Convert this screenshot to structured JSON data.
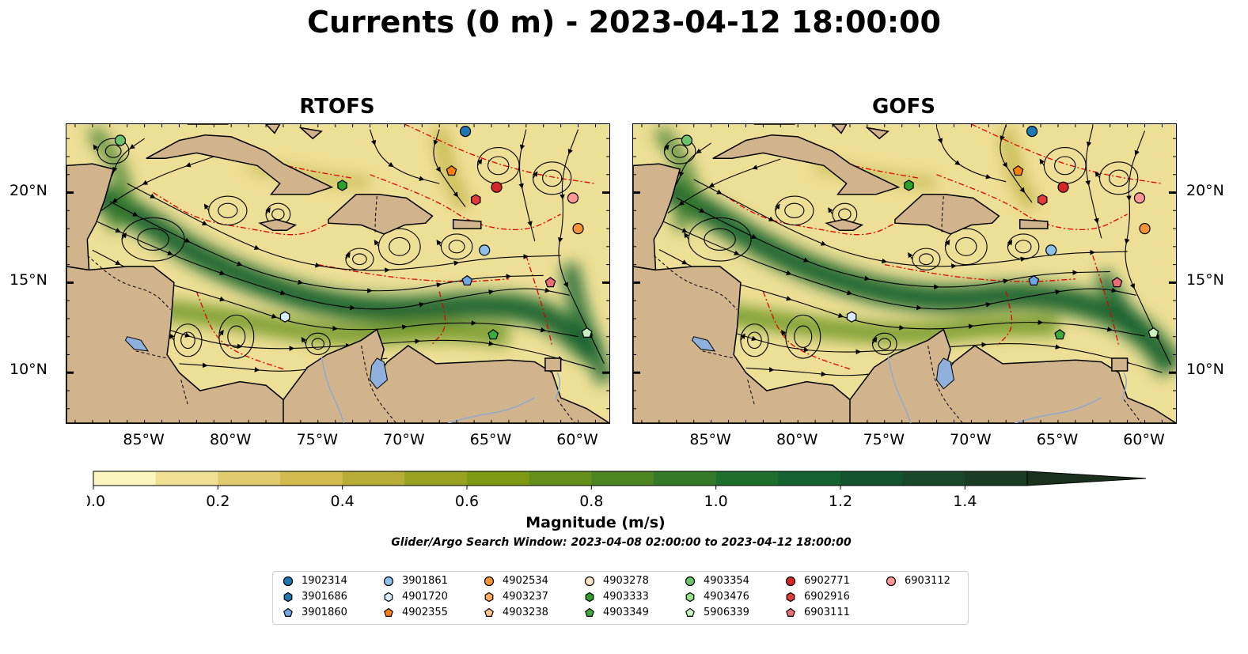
{
  "title": "Currents (0 m) - 2023-04-12 18:00:00",
  "panels": [
    {
      "title": "RTOFS"
    },
    {
      "title": "GOFS"
    }
  ],
  "lon_ticks": [
    "85°W",
    "80°W",
    "75°W",
    "70°W",
    "65°W",
    "60°W"
  ],
  "lat_ticks": [
    "20°N",
    "15°N",
    "10°N"
  ],
  "map_extent": {
    "lon": [
      -89.5,
      -58.2
    ],
    "lat": [
      7.2,
      23.8
    ]
  },
  "colorbar": {
    "label": "Magnitude (m/s)",
    "ticks": [
      "0.0",
      "0.2",
      "0.4",
      "0.6",
      "0.8",
      "1.0",
      "1.2",
      "1.4"
    ],
    "range": [
      0,
      1.5
    ],
    "extend": "max",
    "colors": [
      "#fbf5c0",
      "#efe093",
      "#e0cb6f",
      "#d2bb4f",
      "#b6ac36",
      "#97a320",
      "#7e9a14",
      "#63901b",
      "#4c8521",
      "#347a28",
      "#1e6f2d",
      "#136230",
      "#13532d",
      "#18472a",
      "#1a3c25",
      "#1c301e"
    ]
  },
  "search_window": "Glider/Argo Search Window: 2023-04-08 02:00:00 to 2023-04-12 18:00:00",
  "legend": [
    {
      "id": "1902314",
      "color": "#1f77b4",
      "marker": "circle"
    },
    {
      "id": "3901686",
      "color": "#1f77b4",
      "marker": "hexagon"
    },
    {
      "id": "3901860",
      "color": "#6ea6e6",
      "marker": "pentagon"
    },
    {
      "id": "3901861",
      "color": "#8ec1ea",
      "marker": "circle"
    },
    {
      "id": "4901720",
      "color": "#d6ecfa",
      "marker": "hexagon"
    },
    {
      "id": "4902355",
      "color": "#ff7f0e",
      "marker": "pentagon"
    },
    {
      "id": "4902534",
      "color": "#f8953a",
      "marker": "circle"
    },
    {
      "id": "4903237",
      "color": "#ffac63",
      "marker": "hexagon"
    },
    {
      "id": "4903238",
      "color": "#ffc690",
      "marker": "pentagon"
    },
    {
      "id": "4903278",
      "color": "#fde1c4",
      "marker": "circle"
    },
    {
      "id": "4903333",
      "color": "#2ca02c",
      "marker": "hexagon"
    },
    {
      "id": "4903349",
      "color": "#3cab3c",
      "marker": "pentagon"
    },
    {
      "id": "4903354",
      "color": "#6cc36c",
      "marker": "circle"
    },
    {
      "id": "4903476",
      "color": "#98df8a",
      "marker": "hexagon"
    },
    {
      "id": "5906339",
      "color": "#caf1c2",
      "marker": "pentagon"
    },
    {
      "id": "6902771",
      "color": "#d62728",
      "marker": "circle"
    },
    {
      "id": "6902916",
      "color": "#e03b3b",
      "marker": "hexagon"
    },
    {
      "id": "6903111",
      "color": "#ec6d7a",
      "marker": "pentagon"
    },
    {
      "id": "6903112",
      "color": "#ff9896",
      "marker": "circle"
    }
  ],
  "markers": [
    {
      "id": "1902314",
      "lon": -66.5,
      "lat": 23.4
    },
    {
      "id": "4903354",
      "lon": -86.4,
      "lat": 22.9
    },
    {
      "id": "4902355",
      "lon": -67.3,
      "lat": 21.2
    },
    {
      "id": "4903333",
      "lon": -73.6,
      "lat": 20.4
    },
    {
      "id": "6902771",
      "lon": -64.7,
      "lat": 20.3
    },
    {
      "id": "6902916",
      "lon": -65.9,
      "lat": 19.6
    },
    {
      "id": "6903112",
      "lon": -60.3,
      "lat": 19.7
    },
    {
      "id": "4902534",
      "lon": -60.0,
      "lat": 18.0
    },
    {
      "id": "3901861",
      "lon": -65.4,
      "lat": 16.8
    },
    {
      "id": "3901860",
      "lon": -66.4,
      "lat": 15.1
    },
    {
      "id": "6903111",
      "lon": -61.6,
      "lat": 15.0
    },
    {
      "id": "4901720",
      "lon": -76.9,
      "lat": 13.1
    },
    {
      "id": "4903349",
      "lon": -64.9,
      "lat": 12.1
    },
    {
      "id": "5906339",
      "lon": -59.5,
      "lat": 12.2
    }
  ]
}
